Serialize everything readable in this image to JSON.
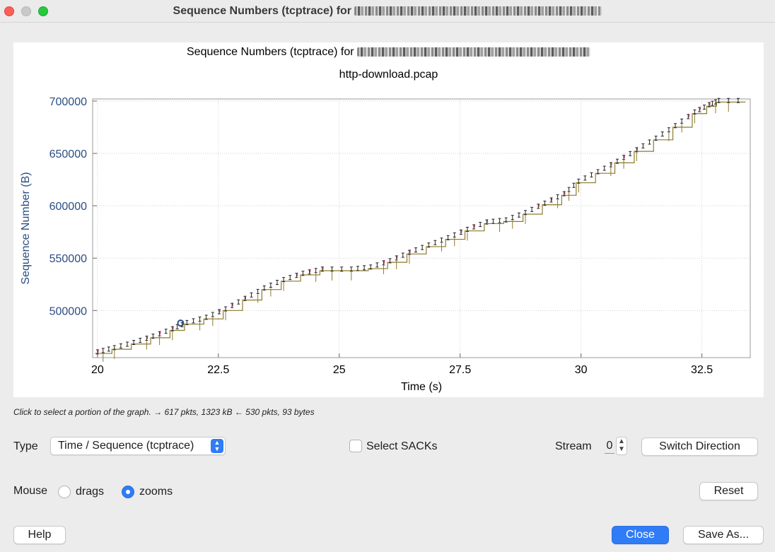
{
  "window": {
    "title": "Sequence Numbers (tcptrace) for"
  },
  "graph": {
    "title": "Sequence Numbers (tcptrace) for",
    "subtitle": "http-download.pcap",
    "status_hint": "Click to select a portion of the graph. → 617 pkts, 1323 kB ← 530 pkts, 93 bytes",
    "colors": {
      "axis_label": "#2b4d82",
      "sequence_line": "#222222",
      "window_line": "#8c7a2a",
      "sack": "#b23a6a",
      "marker": "#2b4d82"
    }
  },
  "chart_data": {
    "type": "line",
    "xlabel": "Time (s)",
    "ylabel": "Sequence Number (B)",
    "xlim": [
      19.9,
      33.5
    ],
    "ylim": [
      455000,
      702000
    ],
    "xticks": [
      20,
      22.5,
      25,
      27.5,
      30,
      32.5
    ],
    "xtick_labels": [
      "20",
      "22.5",
      "25",
      "27.5",
      "30",
      "32.5"
    ],
    "yticks": [
      500000,
      550000,
      600000,
      650000,
      700000
    ],
    "ytick_labels": [
      "500000",
      "550000",
      "600000",
      "650000",
      "700000"
    ],
    "grid": true,
    "series": [
      {
        "x": [
          19.95,
          20.3,
          20.7,
          21.1,
          21.5,
          21.8,
          22.2,
          22.6,
          23.0,
          23.4,
          23.8,
          24.2,
          24.6,
          25.2,
          25.6,
          26.0,
          26.4,
          26.8,
          27.2,
          27.6,
          28.0,
          28.4,
          28.8,
          29.2,
          29.6,
          29.9,
          30.3,
          30.7,
          31.1,
          31.5,
          31.9,
          32.3,
          32.6,
          32.8,
          33.4
        ],
        "y": [
          459000,
          463000,
          468000,
          474000,
          481000,
          487000,
          492000,
          500000,
          510000,
          520000,
          528000,
          534000,
          538000,
          538000,
          540000,
          546000,
          554000,
          561000,
          568000,
          576000,
          583000,
          585000,
          592000,
          601000,
          610000,
          622000,
          631000,
          641000,
          652000,
          663000,
          675000,
          688000,
          695000,
          699000,
          699000
        ]
      }
    ],
    "marker": {
      "x": 21.72,
      "y": 488000
    }
  },
  "controls": {
    "type_label": "Type",
    "type_value": "Time / Sequence (tcptrace)",
    "select_sacks_label": "Select SACKs",
    "stream_label": "Stream",
    "stream_value": "0",
    "switch_direction_label": "Switch Direction",
    "mouse_label": "Mouse",
    "drags_label": "drags",
    "zooms_label": "zooms",
    "reset_label": "Reset",
    "help_label": "Help",
    "close_label": "Close",
    "save_as_label": "Save As..."
  }
}
